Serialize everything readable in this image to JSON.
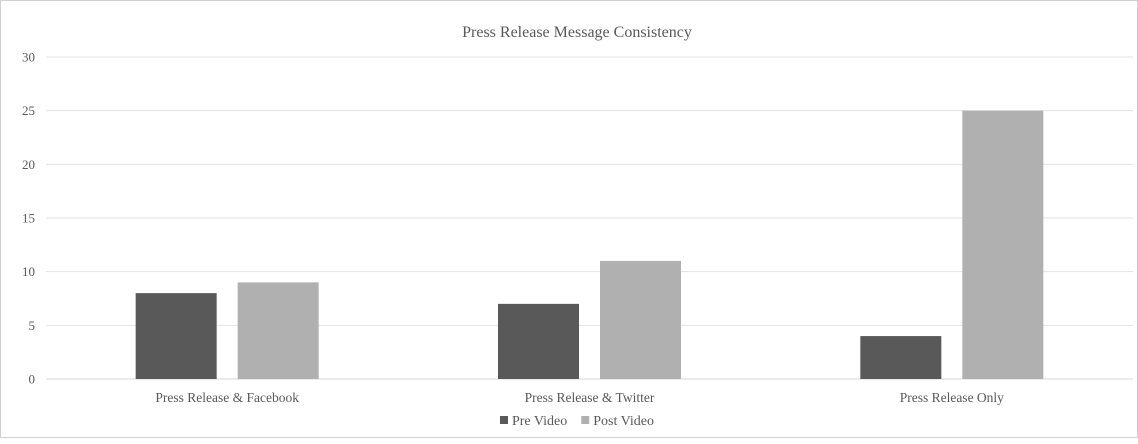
{
  "chart_data": {
    "type": "bar",
    "title": "Press Release Message Consistency",
    "categories": [
      "Press Release & Facebook",
      "Press Release & Twitter",
      "Press Release Only"
    ],
    "series": [
      {
        "name": "Pre Video",
        "values": [
          8,
          7,
          4
        ],
        "color": "#595959"
      },
      {
        "name": "Post Video",
        "values": [
          9,
          11,
          25
        ],
        "color": "#b0b0b0"
      }
    ],
    "xlabel": "",
    "ylabel": "",
    "ylim": [
      0,
      30
    ],
    "yticks": [
      0,
      5,
      10,
      15,
      20,
      25,
      30
    ],
    "grid": true,
    "legend_position": "bottom"
  }
}
